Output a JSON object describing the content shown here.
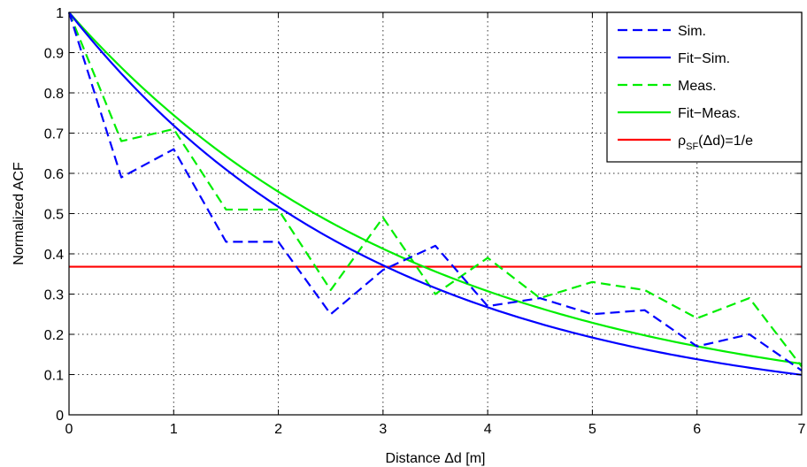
{
  "chart_data": {
    "type": "line",
    "xlabel": "Distance Δd [m]",
    "ylabel": "Normalized ACF",
    "xlim": [
      0,
      7
    ],
    "ylim": [
      0,
      1
    ],
    "xticks": [
      "0",
      "1",
      "2",
      "3",
      "4",
      "5",
      "6",
      "7"
    ],
    "yticks": [
      "0",
      "0.1",
      "0.2",
      "0.3",
      "0.4",
      "0.5",
      "0.6",
      "0.7",
      "0.8",
      "0.9",
      "1"
    ],
    "grid": true,
    "legend_position": "top-right",
    "series": [
      {
        "name": "Sim.",
        "color": "#0000ff",
        "style": "dashed",
        "x": [
          0,
          0.5,
          1,
          1.5,
          2,
          2.5,
          3,
          3.5,
          4,
          4.5,
          5,
          5.5,
          6,
          6.5,
          7
        ],
        "y": [
          1.0,
          0.59,
          0.66,
          0.43,
          0.43,
          0.25,
          0.36,
          0.42,
          0.27,
          0.29,
          0.25,
          0.26,
          0.17,
          0.2,
          0.11
        ]
      },
      {
        "name": "Fit−Sim.",
        "color": "#0000ff",
        "style": "solid",
        "fit_rate": 0.33,
        "x": [
          0,
          0.5,
          1,
          1.5,
          2,
          2.5,
          3,
          3.5,
          4,
          4.5,
          5,
          5.5,
          6,
          6.5,
          7
        ],
        "y": [
          1.0,
          0.85,
          0.72,
          0.61,
          0.52,
          0.44,
          0.37,
          0.31,
          0.27,
          0.23,
          0.19,
          0.16,
          0.14,
          0.12,
          0.1
        ]
      },
      {
        "name": "Meas.",
        "color": "#00ee00",
        "style": "dashed",
        "x": [
          0,
          0.5,
          1,
          1.5,
          2,
          2.5,
          3,
          3.5,
          4,
          4.5,
          5,
          5.5,
          6,
          6.5,
          7
        ],
        "y": [
          1.0,
          0.68,
          0.71,
          0.51,
          0.51,
          0.31,
          0.49,
          0.3,
          0.39,
          0.29,
          0.33,
          0.31,
          0.24,
          0.29,
          0.12
        ]
      },
      {
        "name": "Fit−Meas.",
        "color": "#00ee00",
        "style": "solid",
        "fit_rate": 0.295,
        "x": [
          0,
          0.5,
          1,
          1.5,
          2,
          2.5,
          3,
          3.5,
          4,
          4.5,
          5,
          5.5,
          6,
          6.5,
          7
        ],
        "y": [
          1.0,
          0.86,
          0.74,
          0.64,
          0.55,
          0.48,
          0.41,
          0.36,
          0.31,
          0.27,
          0.23,
          0.2,
          0.17,
          0.15,
          0.13
        ]
      },
      {
        "name": "ρSF(Δd)=1/e",
        "color": "#ff0000",
        "style": "solid",
        "x": [
          0,
          7
        ],
        "y": [
          0.368,
          0.368
        ]
      }
    ],
    "legend": {
      "entries": [
        {
          "label": "Sim.",
          "color": "#0000ff",
          "style": "dashed"
        },
        {
          "label": "Fit−Sim.",
          "color": "#0000ff",
          "style": "solid"
        },
        {
          "label": "Meas.",
          "color": "#00ee00",
          "style": "dashed"
        },
        {
          "label": "Fit−Meas.",
          "color": "#00ee00",
          "style": "solid"
        },
        {
          "label_parts": [
            "ρ",
            "SF",
            "(Δd)=1/e"
          ],
          "color": "#ff0000",
          "style": "solid"
        }
      ]
    }
  }
}
